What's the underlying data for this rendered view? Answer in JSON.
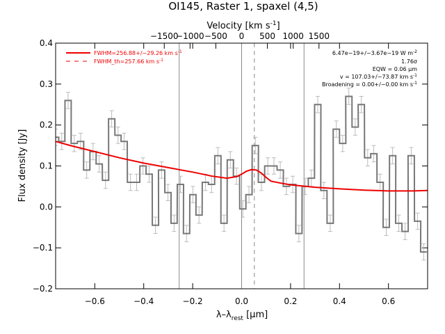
{
  "chart_data": {
    "type": "step-histogram",
    "title": "OI145, Raster 1, spaxel (4,5)",
    "xlabel_main": "λ–λ",
    "xlabel_sub": "rest",
    "xlabel_unit": " [μm]",
    "ylabel": "Flux density [Jy]",
    "top_axis": {
      "label": "Velocity [km s",
      "label_sup": "-1",
      "label_end": "]",
      "ticks": [
        -1500,
        -1000,
        -500,
        0,
        500,
        1000,
        1500
      ],
      "tick_labels": [
        "−1500",
        "−1000",
        "−500",
        "0",
        "500",
        "1000",
        "1500"
      ]
    },
    "xlim": [
      -0.76,
      0.76
    ],
    "ylim": [
      -0.2,
      0.4
    ],
    "xticks": [
      -0.6,
      -0.4,
      -0.2,
      0.0,
      0.2,
      0.4,
      0.6
    ],
    "xtick_labels": [
      "−0.6",
      "−0.4",
      "−0.2",
      "0.0",
      "0.2",
      "0.4",
      "0.6"
    ],
    "yticks": [
      -0.2,
      -0.1,
      0.0,
      0.1,
      0.2,
      0.3,
      0.4
    ],
    "ytick_labels": [
      "−0.2",
      "−0.1",
      "0.0",
      "0.1",
      "0.2",
      "0.3",
      "0.4"
    ],
    "vlines": [
      -0.255,
      0.0,
      0.255
    ],
    "vline_dashed": 0.052,
    "bin_width": 0.0255,
    "spectrum": {
      "name": "observed flux",
      "x": [
        -0.76,
        -0.735,
        -0.709,
        -0.684,
        -0.658,
        -0.633,
        -0.607,
        -0.582,
        -0.556,
        -0.531,
        -0.505,
        -0.48,
        -0.454,
        -0.429,
        -0.403,
        -0.378,
        -0.352,
        -0.327,
        -0.301,
        -0.276,
        -0.25,
        -0.225,
        -0.199,
        -0.174,
        -0.148,
        -0.123,
        -0.097,
        -0.072,
        -0.046,
        -0.021,
        0.005,
        0.03,
        0.056,
        0.081,
        0.107,
        0.132,
        0.158,
        0.183,
        0.209,
        0.234,
        0.26,
        0.285,
        0.311,
        0.336,
        0.362,
        0.387,
        0.413,
        0.438,
        0.464,
        0.489,
        0.515,
        0.54,
        0.566,
        0.591,
        0.617,
        0.642,
        0.668,
        0.693,
        0.719,
        0.744
      ],
      "y": [
        0.17,
        0.16,
        0.26,
        0.155,
        0.16,
        0.09,
        0.135,
        0.105,
        0.065,
        0.215,
        0.175,
        0.16,
        0.06,
        0.06,
        0.1,
        0.08,
        -0.045,
        0.09,
        0.035,
        -0.04,
        0.055,
        -0.065,
        0.03,
        -0.02,
        0.06,
        0.055,
        0.125,
        -0.04,
        0.115,
        0.075,
        -0.005,
        0.03,
        0.15,
        0.06,
        0.1,
        0.1,
        0.09,
        0.05,
        0.055,
        -0.065,
        0.05,
        0.07,
        0.25,
        0.04,
        -0.04,
        0.19,
        0.155,
        0.27,
        0.195,
        0.25,
        0.12,
        0.13,
        0.06,
        -0.05,
        0.125,
        -0.04,
        -0.06,
        0.125,
        -0.035,
        -0.11
      ],
      "err": [
        0.02,
        0.02,
        0.02,
        0.02,
        0.02,
        0.02,
        0.02,
        0.02,
        0.02,
        0.02,
        0.02,
        0.02,
        0.02,
        0.02,
        0.02,
        0.02,
        0.02,
        0.02,
        0.02,
        0.02,
        0.02,
        0.02,
        0.02,
        0.02,
        0.02,
        0.02,
        0.02,
        0.02,
        0.02,
        0.02,
        0.02,
        0.02,
        0.02,
        0.02,
        0.02,
        0.02,
        0.02,
        0.02,
        0.02,
        0.02,
        0.02,
        0.02,
        0.02,
        0.02,
        0.02,
        0.02,
        0.02,
        0.02,
        0.02,
        0.02,
        0.02,
        0.02,
        0.02,
        0.02,
        0.02,
        0.02,
        0.02,
        0.02,
        0.02,
        0.02
      ],
      "color": "#777777"
    },
    "fit": {
      "name": "FWHM fit",
      "color": "#ee0000",
      "x": [
        -0.76,
        -0.7,
        -0.6,
        -0.5,
        -0.4,
        -0.3,
        -0.2,
        -0.12,
        -0.06,
        -0.02,
        0.0,
        0.02,
        0.04,
        0.06,
        0.08,
        0.1,
        0.12,
        0.16,
        0.2,
        0.3,
        0.4,
        0.5,
        0.6,
        0.7,
        0.76
      ],
      "y": [
        0.16,
        0.15,
        0.135,
        0.12,
        0.107,
        0.096,
        0.085,
        0.075,
        0.07,
        0.074,
        0.08,
        0.087,
        0.091,
        0.09,
        0.083,
        0.072,
        0.063,
        0.058,
        0.054,
        0.048,
        0.044,
        0.041,
        0.039,
        0.039,
        0.04
      ]
    },
    "legend": {
      "position": "top-left",
      "entries": [
        {
          "label": "FWHM=256.88+/−29.26 km s",
          "sup": "-1",
          "style": "solid",
          "color": "#ee0000"
        },
        {
          "label": "FWHM_th=257.66 km s",
          "sup": "-1",
          "style": "dashed",
          "color": "#ee0000"
        }
      ]
    },
    "annotations": {
      "position": "top-right",
      "lines": [
        {
          "text": "6.47e−19+/−3.67e−19 W m",
          "sup": "-2"
        },
        {
          "text": "1.76σ",
          "sup": ""
        },
        {
          "text": "EQW = 0.06 μm",
          "sup": ""
        },
        {
          "text": "v = 107.03+/−73.87 km s",
          "sup": "-1"
        },
        {
          "text": "Broadening = 0.00+/−0.00 km s",
          "sup": "-1"
        }
      ]
    }
  }
}
